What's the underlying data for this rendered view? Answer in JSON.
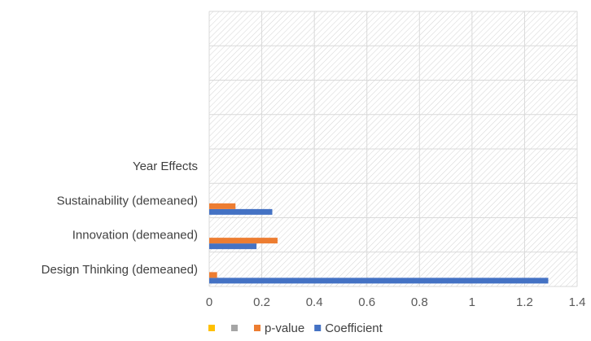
{
  "chart_data": {
    "type": "bar",
    "orientation": "horizontal",
    "categories": [
      "Design Thinking (demeaned)",
      "Innovation (demeaned)",
      "Sustainability (demeaned)",
      "Year Effects",
      "",
      "",
      "",
      ""
    ],
    "series": [
      {
        "name": "Coefficient",
        "color": "#4472c4",
        "values": [
          1.29,
          0.18,
          0.24,
          null,
          null,
          null,
          null,
          null
        ]
      },
      {
        "name": "p-value",
        "color": "#ed7d31",
        "values": [
          0.03,
          0.26,
          0.1,
          null,
          null,
          null,
          null,
          null
        ]
      },
      {
        "name": "",
        "color": "#a5a5a5",
        "values": [
          null,
          null,
          null,
          null,
          null,
          null,
          null,
          null
        ]
      },
      {
        "name": "",
        "color": "#ffc000",
        "values": [
          null,
          null,
          null,
          null,
          null,
          null,
          null,
          null
        ]
      }
    ],
    "xlim": [
      0,
      1.4
    ],
    "xticks": [
      "0",
      "0.2",
      "0.4",
      "0.6",
      "0.8",
      "1",
      "1.2",
      "1.4"
    ],
    "grid": true,
    "plot_background": "diagonal-hatch",
    "legend": {
      "position": "bottom",
      "entries": [
        {
          "label": "",
          "color": "#ffc000"
        },
        {
          "label": "",
          "color": "#a5a5a5"
        },
        {
          "label": "p-value",
          "color": "#ed7d31"
        },
        {
          "label": "Coefficient",
          "color": "#4472c4"
        }
      ]
    }
  }
}
